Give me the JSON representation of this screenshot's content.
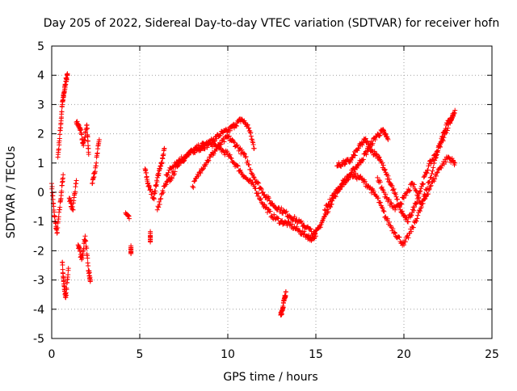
{
  "chart_data": {
    "type": "scatter",
    "title": "Day 205 of 2022, Sidereal Day-to-day VTEC variation (SDTVAR) for receiver hofn",
    "xlabel": "GPS time / hours",
    "ylabel": "SDTVAR / TECUs",
    "xlim": [
      0,
      25
    ],
    "ylim": [
      -5,
      5
    ],
    "x_ticks": [
      "0",
      "5",
      "10",
      "15",
      "20",
      "25"
    ],
    "y_ticks": [
      "-5",
      "-4",
      "-3",
      "-2",
      "-1",
      "0",
      "1",
      "2",
      "3",
      "4",
      "5"
    ],
    "grid": true,
    "marker": "+",
    "colors": {
      "series": "#ff0000",
      "grid": "#a0a0a0",
      "axis": "#000000"
    },
    "series": [
      {
        "name": "SDTVAR",
        "segments": [
          {
            "x": [
              0.0,
              0.15,
              0.3,
              0.5,
              0.65
            ],
            "y": [
              0.3,
              -0.8,
              -1.4,
              -0.3,
              0.6
            ]
          },
          {
            "x": [
              0.35,
              0.5,
              0.6,
              0.7,
              0.8,
              0.9
            ],
            "y": [
              1.2,
              2.2,
              3.0,
              3.4,
              3.8,
              4.0
            ]
          },
          {
            "x": [
              0.6,
              0.7,
              0.8,
              0.95
            ],
            "y": [
              -2.4,
              -3.2,
              -3.6,
              -2.6
            ]
          },
          {
            "x": [
              1.0,
              1.2,
              1.4
            ],
            "y": [
              -0.2,
              -0.6,
              0.4
            ]
          },
          {
            "x": [
              1.4,
              1.6,
              1.8,
              2.0,
              2.1
            ],
            "y": [
              2.4,
              2.2,
              1.6,
              2.3,
              1.3
            ]
          },
          {
            "x": [
              1.5,
              1.7,
              1.9,
              2.1,
              2.2
            ],
            "y": [
              -1.8,
              -2.3,
              -1.5,
              -2.7,
              -3.0
            ]
          },
          {
            "x": [
              2.3,
              2.5,
              2.7
            ],
            "y": [
              0.3,
              0.9,
              1.8
            ]
          },
          {
            "x": [
              4.2,
              4.4
            ],
            "y": [
              -0.7,
              -0.9
            ]
          },
          {
            "x": [
              4.5,
              4.5
            ],
            "y": [
              -1.9,
              -2.1
            ]
          },
          {
            "x": [
              5.6,
              5.6
            ],
            "y": [
              -1.4,
              -1.7
            ]
          },
          {
            "x": [
              5.3,
              5.5,
              5.8,
              6.0,
              6.2,
              6.4
            ],
            "y": [
              0.8,
              0.2,
              -0.2,
              0.5,
              0.9,
              1.5
            ]
          },
          {
            "x": [
              6.0,
              6.4,
              6.8,
              7.2,
              7.6,
              8.0,
              8.4,
              8.8,
              9.2,
              9.6,
              10.0,
              10.4,
              10.8,
              11.2,
              11.5
            ],
            "y": [
              -0.6,
              0.2,
              0.5,
              1.0,
              1.2,
              1.4,
              1.5,
              1.6,
              1.8,
              2.0,
              2.1,
              2.3,
              2.5,
              2.2,
              1.5
            ]
          },
          {
            "x": [
              6.5,
              7.0,
              7.5,
              8.0,
              8.5,
              9.0,
              9.5,
              10.0,
              10.5,
              11.0,
              11.5,
              12.0,
              12.5,
              13.0,
              13.5,
              14.0,
              14.5,
              14.8
            ],
            "y": [
              0.6,
              1.0,
              1.2,
              1.4,
              1.6,
              1.7,
              1.5,
              1.3,
              0.9,
              0.5,
              0.2,
              -0.4,
              -0.8,
              -1.0,
              -1.1,
              -1.3,
              -1.5,
              -1.6
            ]
          },
          {
            "x": [
              8.0,
              8.5,
              9.0,
              9.5,
              10.0,
              10.5,
              11.0,
              11.5,
              12.0,
              12.5,
              13.0,
              13.5,
              14.0,
              14.5,
              15.0
            ],
            "y": [
              0.2,
              0.8,
              1.2,
              1.6,
              1.9,
              1.6,
              1.2,
              0.5,
              0.0,
              -0.4,
              -0.6,
              -0.8,
              -1.0,
              -1.2,
              -1.5
            ]
          },
          {
            "x": [
              13.0,
              13.1,
              13.2,
              13.3
            ],
            "y": [
              -4.2,
              -4.0,
              -3.7,
              -3.4
            ]
          },
          {
            "x": [
              14.8,
              15.2,
              15.6,
              16.0,
              16.4,
              16.8,
              17.2,
              17.6,
              18.0,
              18.4,
              18.8,
              19.1
            ],
            "y": [
              -1.6,
              -1.2,
              -0.7,
              -0.2,
              0.2,
              0.5,
              0.8,
              1.1,
              1.5,
              1.9,
              2.1,
              1.8
            ]
          },
          {
            "x": [
              15.5,
              16.0,
              16.5,
              17.0,
              17.5,
              18.0,
              18.5,
              19.0,
              19.5,
              20.0,
              20.5,
              21.0,
              21.5,
              22.0,
              22.5,
              22.9
            ],
            "y": [
              -0.6,
              -0.1,
              0.3,
              0.6,
              0.5,
              0.2,
              -0.2,
              -0.9,
              -1.4,
              -1.8,
              -1.2,
              -0.5,
              0.2,
              0.8,
              1.2,
              1.0
            ]
          },
          {
            "x": [
              16.2,
              16.6,
              17.0,
              17.4,
              17.8,
              18.2,
              18.6,
              19.0,
              19.4,
              19.8,
              20.2,
              20.6,
              21.0,
              21.4,
              21.8,
              22.2,
              22.6,
              22.9
            ],
            "y": [
              0.9,
              1.0,
              1.1,
              1.5,
              1.8,
              1.4,
              1.2,
              0.6,
              0.1,
              -0.6,
              -1.0,
              -0.5,
              0.2,
              0.9,
              1.3,
              1.8,
              2.4,
              2.8
            ]
          },
          {
            "x": [
              18.5,
              19.0,
              19.5,
              20.0,
              20.5,
              21.0,
              21.5,
              22.0,
              22.4,
              22.8
            ],
            "y": [
              0.5,
              -0.2,
              -0.6,
              -0.2,
              0.3,
              -0.4,
              0.5,
              1.6,
              2.3,
              2.6
            ]
          }
        ]
      }
    ]
  }
}
